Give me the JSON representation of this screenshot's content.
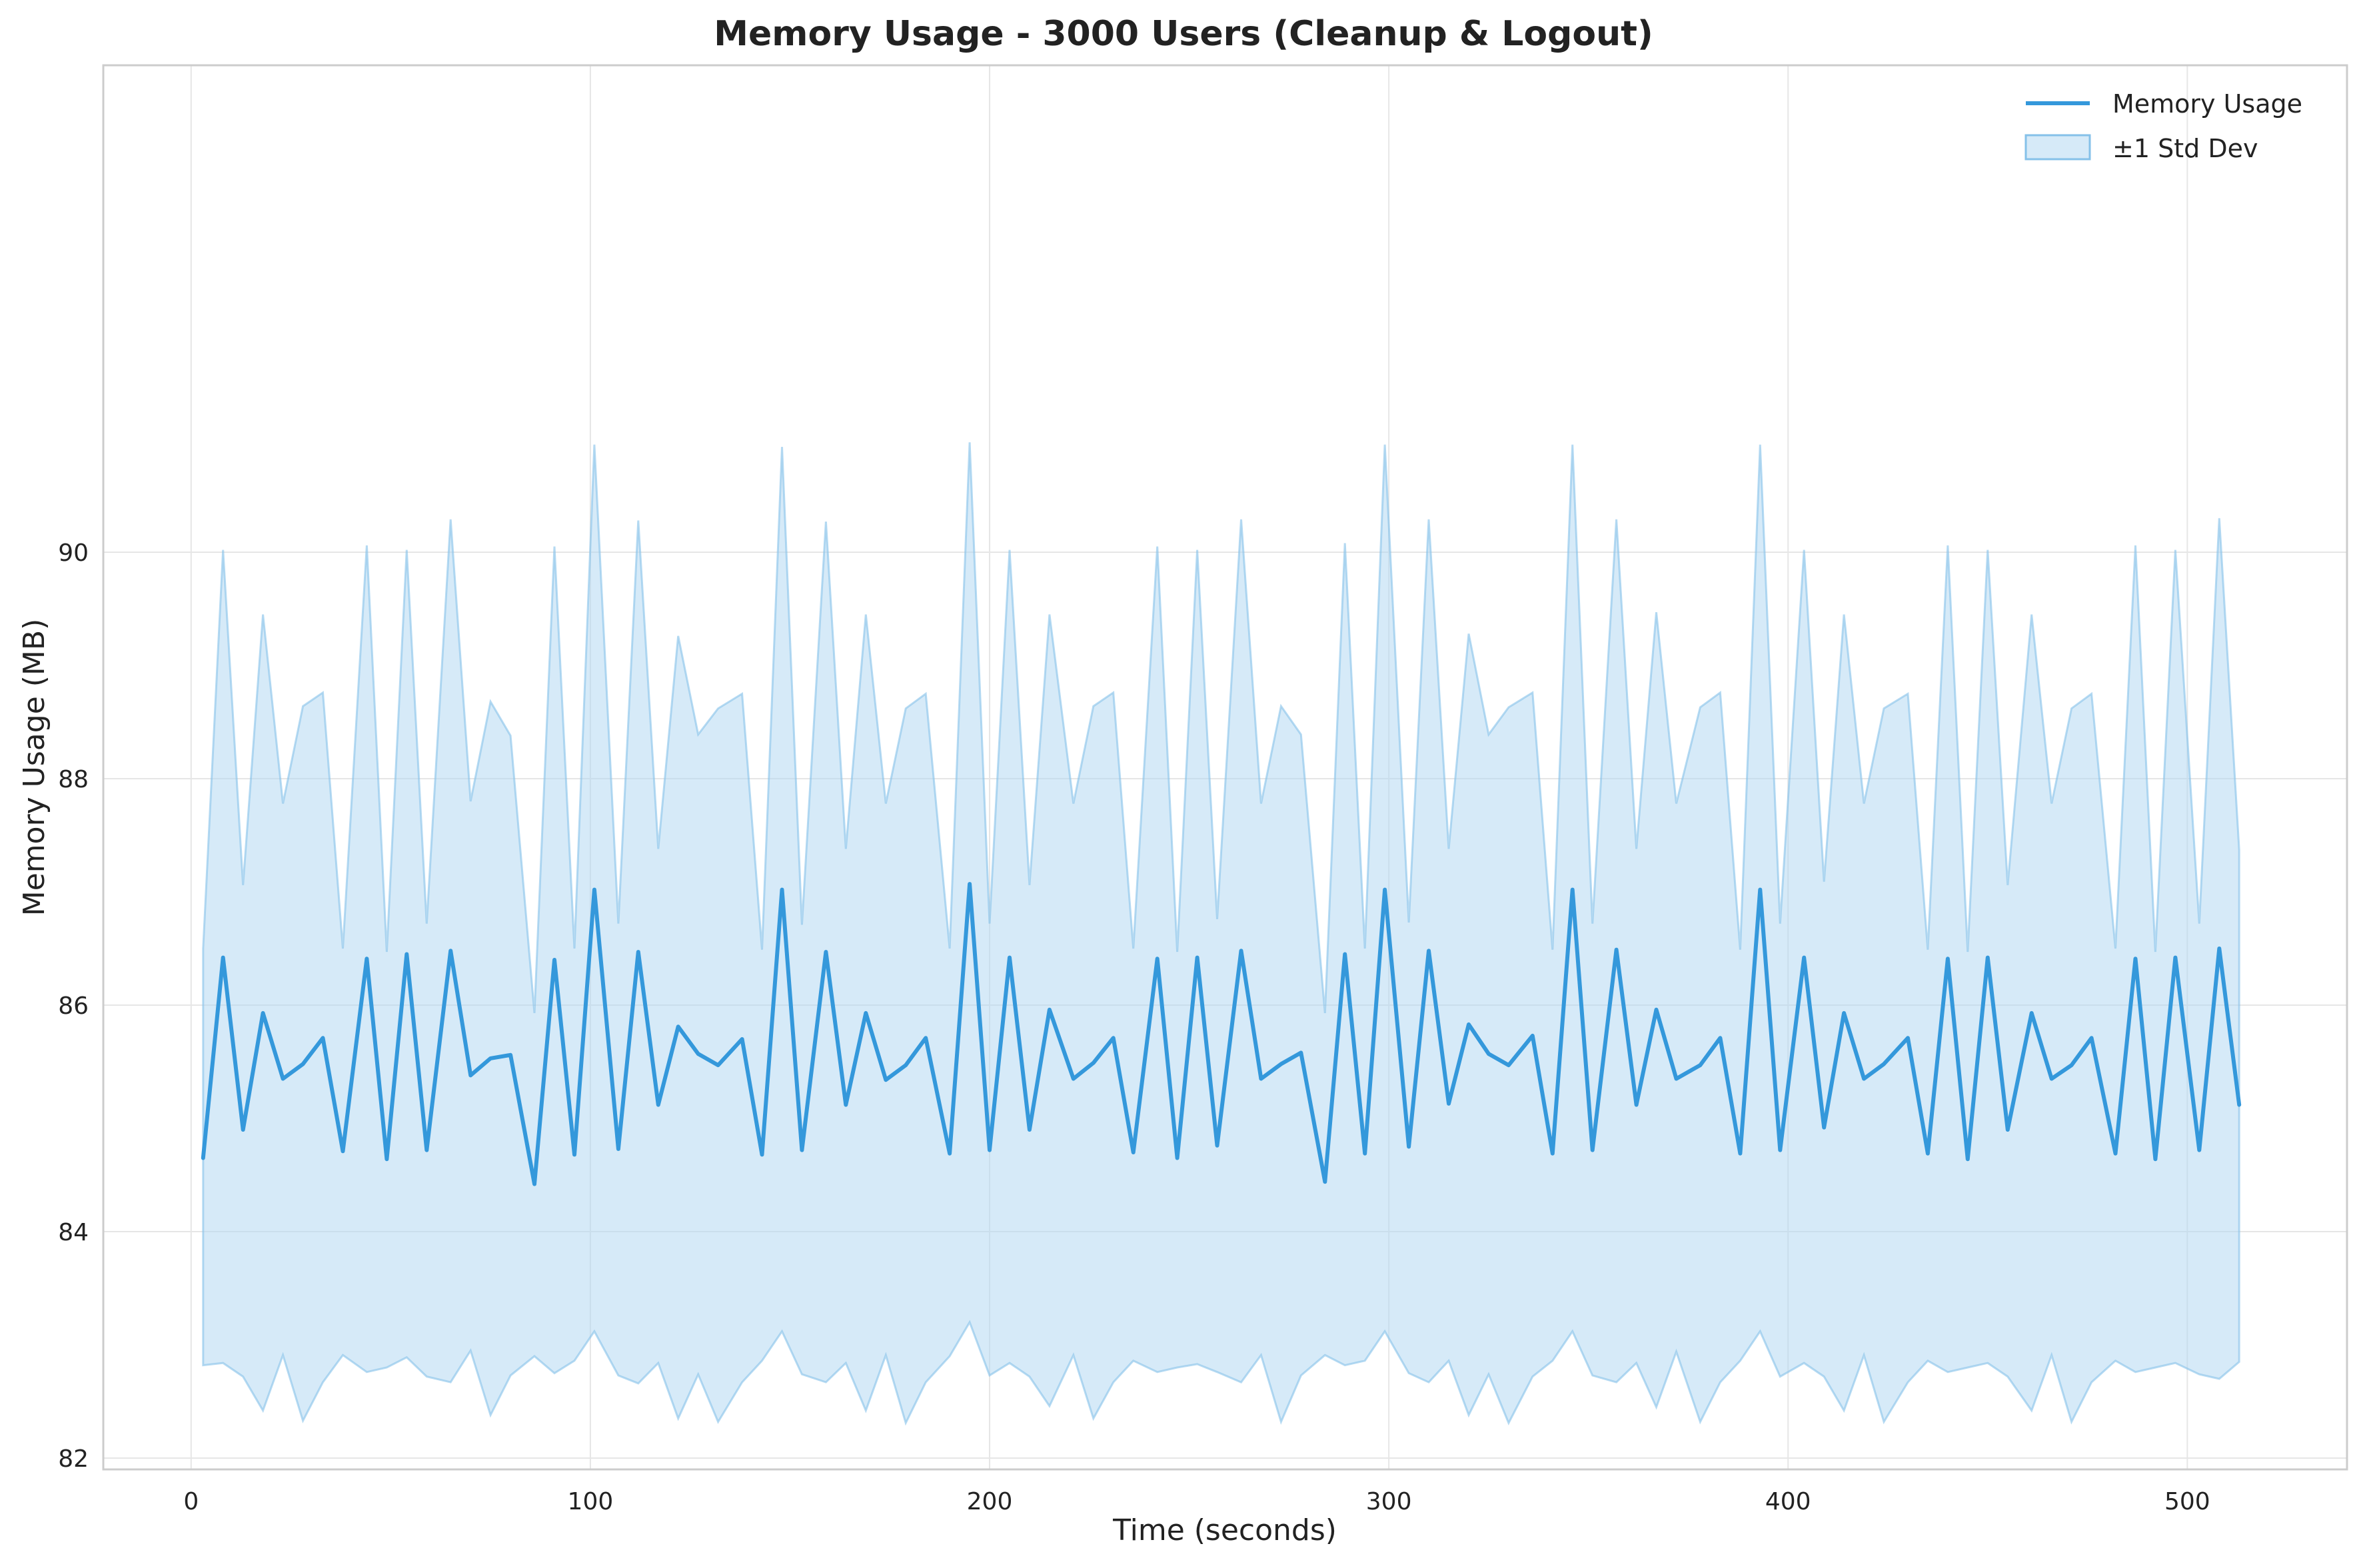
{
  "chart_data": {
    "type": "line",
    "title": "Memory Usage - 3000 Users (Cleanup & Logout)",
    "xlabel": "Time (seconds)",
    "ylabel": "Memory Usage (MB)",
    "xlim": [
      -22,
      540
    ],
    "ylim": [
      81.9,
      94.3
    ],
    "xticks": [
      0,
      100,
      200,
      300,
      400,
      500
    ],
    "yticks": [
      82,
      84,
      86,
      88,
      90
    ],
    "xtick_labels": [
      "0",
      "100",
      "200",
      "300",
      "400",
      "500"
    ],
    "ytick_labels": [
      "82",
      "84",
      "86",
      "88",
      "90"
    ],
    "grid": true,
    "legend_position": "top-right",
    "legend": [
      {
        "label": "Memory Usage",
        "kind": "line",
        "color": "#3498db"
      },
      {
        "label": "±1 Std Dev",
        "kind": "band",
        "color": "#85c1e9"
      }
    ],
    "colors": {
      "line": "#3498db",
      "band_fill": "#aed6f1",
      "band_edge": "#85c1e9",
      "grid": "#e6e6e6",
      "frame": "#cccccc"
    },
    "series": [
      {
        "name": "Memory Usage",
        "x": [
          3,
          8,
          13,
          18,
          23,
          28,
          33,
          38,
          44,
          49,
          54,
          59,
          65,
          70,
          75,
          80,
          86,
          91,
          96,
          101,
          107,
          112,
          117,
          122,
          127,
          132,
          138,
          143,
          148,
          153,
          159,
          164,
          169,
          174,
          179,
          184,
          190,
          195,
          200,
          205,
          210,
          215,
          221,
          226,
          231,
          236,
          242,
          247,
          252,
          257,
          263,
          268,
          273,
          278,
          284,
          289,
          294,
          299,
          305,
          310,
          315,
          320,
          325,
          330,
          336,
          341,
          346,
          351,
          357,
          362,
          367,
          372,
          378,
          383,
          388,
          393,
          398,
          404,
          409,
          414,
          419,
          424,
          430,
          435,
          440,
          445,
          450,
          455,
          461,
          466,
          471,
          476,
          482,
          487,
          492,
          497,
          503,
          508,
          513
        ],
        "y": [
          84.65,
          86.42,
          84.9,
          85.93,
          85.35,
          85.48,
          85.71,
          84.71,
          86.41,
          84.64,
          86.45,
          84.72,
          86.48,
          85.38,
          85.53,
          85.56,
          84.42,
          86.4,
          84.68,
          87.02,
          84.73,
          86.47,
          85.12,
          85.81,
          85.57,
          85.47,
          85.7,
          84.68,
          87.02,
          84.72,
          86.47,
          85.12,
          85.93,
          85.34,
          85.47,
          85.71,
          84.69,
          87.07,
          84.72,
          86.42,
          84.9,
          85.96,
          85.35,
          85.49,
          85.71,
          84.7,
          86.41,
          84.65,
          86.42,
          84.76,
          86.48,
          85.35,
          85.48,
          85.58,
          84.44,
          86.45,
          84.69,
          87.02,
          84.75,
          86.48,
          85.13,
          85.83,
          85.57,
          85.47,
          85.73,
          84.69,
          87.02,
          84.72,
          86.49,
          85.12,
          85.96,
          85.35,
          85.47,
          85.71,
          84.69,
          87.02,
          84.72,
          86.42,
          84.92,
          85.93,
          85.35,
          85.48,
          85.71,
          84.69,
          86.41,
          84.64,
          86.42,
          84.9,
          85.93,
          85.35,
          85.47,
          85.71,
          84.69,
          86.41,
          84.64,
          86.42,
          84.72,
          86.5,
          85.12
        ],
        "lower": [
          82.82,
          82.84,
          82.72,
          82.42,
          82.91,
          82.33,
          82.67,
          82.91,
          82.76,
          82.8,
          82.89,
          82.72,
          82.67,
          82.95,
          82.38,
          82.73,
          82.9,
          82.75,
          82.86,
          83.12,
          82.73,
          82.66,
          82.84,
          82.35,
          82.74,
          82.32,
          82.67,
          82.86,
          83.12,
          82.74,
          82.67,
          82.84,
          82.42,
          82.91,
          82.31,
          82.67,
          82.9,
          83.2,
          82.73,
          82.84,
          82.72,
          82.46,
          82.91,
          82.35,
          82.67,
          82.86,
          82.76,
          82.8,
          82.83,
          82.76,
          82.67,
          82.91,
          82.32,
          82.73,
          82.91,
          82.82,
          82.86,
          83.12,
          82.75,
          82.67,
          82.86,
          82.38,
          82.74,
          82.31,
          82.72,
          82.86,
          83.12,
          82.73,
          82.67,
          82.84,
          82.45,
          82.94,
          82.32,
          82.67,
          82.86,
          83.12,
          82.72,
          82.84,
          82.72,
          82.42,
          82.91,
          82.32,
          82.67,
          82.86,
          82.76,
          82.8,
          82.84,
          82.72,
          82.42,
          82.91,
          82.32,
          82.67,
          82.86,
          82.76,
          82.8,
          82.84,
          82.74,
          82.7,
          82.85
        ],
        "upper": [
          86.5,
          90.02,
          87.06,
          89.45,
          87.78,
          88.64,
          88.76,
          86.5,
          90.06,
          86.47,
          90.02,
          86.72,
          90.29,
          87.8,
          88.68,
          88.38,
          85.93,
          90.05,
          86.5,
          90.95,
          86.72,
          90.28,
          87.38,
          89.26,
          88.39,
          88.62,
          88.75,
          86.49,
          90.93,
          86.71,
          90.27,
          87.38,
          89.45,
          87.78,
          88.62,
          88.75,
          86.5,
          90.97,
          86.72,
          90.02,
          87.06,
          89.45,
          87.78,
          88.64,
          88.76,
          86.5,
          90.05,
          86.47,
          90.02,
          86.76,
          90.29,
          87.78,
          88.64,
          88.39,
          85.93,
          90.08,
          86.5,
          90.95,
          86.73,
          90.29,
          87.38,
          89.28,
          88.39,
          88.63,
          88.76,
          86.49,
          90.95,
          86.72,
          90.29,
          87.38,
          89.47,
          87.78,
          88.63,
          88.76,
          86.49,
          90.95,
          86.72,
          90.02,
          87.09,
          89.45,
          87.78,
          88.62,
          88.75,
          86.49,
          90.06,
          86.47,
          90.02,
          87.06,
          89.45,
          87.78,
          88.62,
          88.75,
          86.5,
          90.06,
          86.47,
          90.02,
          86.72,
          90.3,
          87.37
        ]
      }
    ]
  }
}
